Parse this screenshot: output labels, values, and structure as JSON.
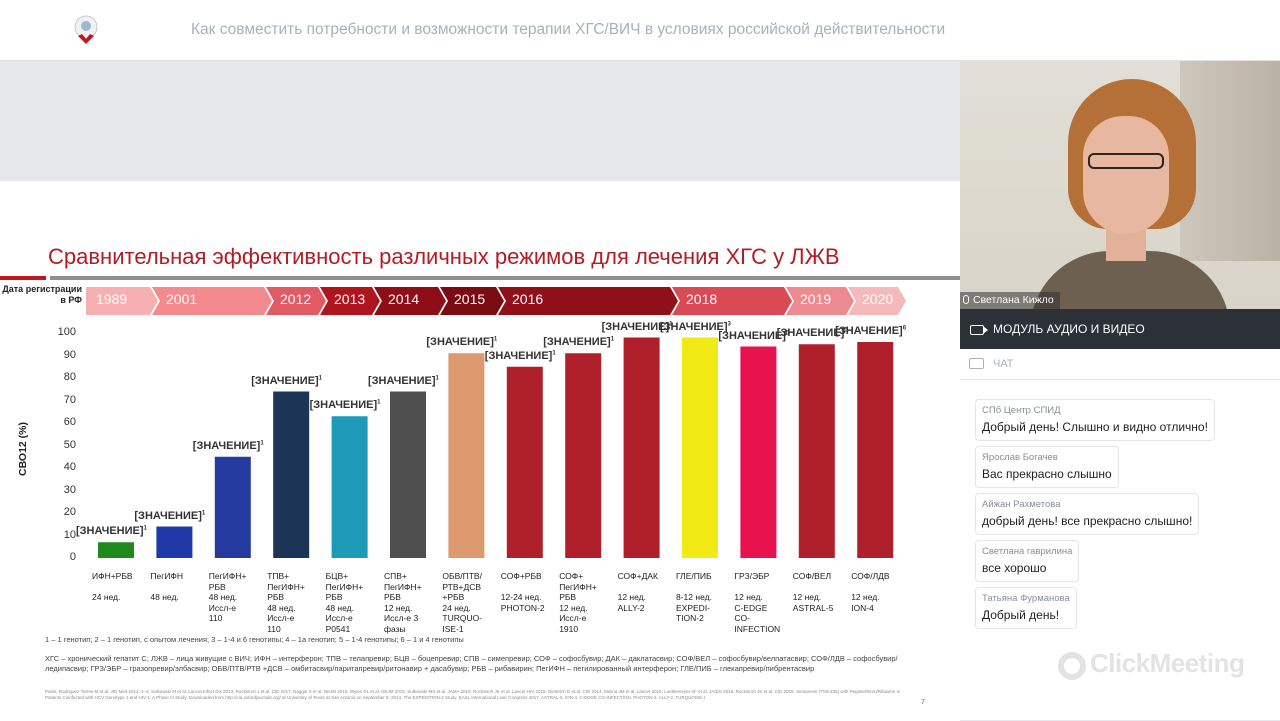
{
  "header": {
    "title": "Как совместить потребности и возможности терапии ХГС/ВИЧ в условиях российской действительности"
  },
  "slide": {
    "title": "Сравнительная эффективность различных режимов для лечения ХГС у ЛЖВ",
    "registration_label": "Дата регистрации в РФ",
    "timeline": {
      "years": [
        "1989",
        "2001",
        "2012",
        "2013",
        "2014",
        "2015",
        "2016",
        "2018",
        "2019",
        "2020"
      ],
      "colors": [
        "#f7b0b2",
        "#f28a8e",
        "#e05b63",
        "#b0151f",
        "#8e0d16",
        "#7a0b13",
        "#901019",
        "#d94a55",
        "#ec8a90",
        "#f5b8bb"
      ]
    },
    "footnote": "1 – 1 генотип; 2 – 1 генотип, с опытом лечения; 3 – 1-4 и 6 генотипы; 4 – 1а генотип; 5 – 1-4 генотипы; 6 – 1 и 4 генотипы",
    "abbreviations": "ХГС – хронический гепатит С; ЛЖВ – лица живущие с ВИЧ; ИФН – интерферон; ТПВ – телапревир; БЦВ – боцепревир; СПВ – симепревир; СОФ – софосбувир; ДАК – даклатасвир; СОФ/ВЕЛ – софосбувир/велпатасвир; СОФ/ЛДВ – софосбувир/ледипасвир; ГРЗ/ЭБР – гразопревир/элбасвир; ОБВ/ПТВ/РТВ +ДСВ – омбитасвир/паритапревир/ритонавир + дасабувир; РБВ – рибавирин; ПегИФН – пегилированный интерферон; ГЛЕ/ПИБ – глекапревир/пибрентасвир",
    "references": "Parisi, Rodriguez-Torres M et al. JID Med 2012; 1–4; Sulkowski M et al. Lancet Infect Dis 2013; Rockstroh J et al. CID 2017; Naggie S et al. NEJM 2015; Wyles DL et al. NEJM 2015; Sulkowski MS et al. JAMA 2015; Rockstroh JK et al. Lancet HIV 2015; Dieterich D et al. CID 2014; Molina JM et al. Lancet 2015; Luetkemeyer AF et al. JAIDS 2016; Rockstroh JK et al. CID 2018. Simeprevir (TMC435) with Peginterferon/Ribavirin in Patients Coinfected with HCV Genotype 1 and HIV-1: A Phase III Study. Downloaded from http://cid.oxfordjournals.org/ at University of Texas at San Antonio on September 8, 2014. The EXPEDITION-2 Study. EASL International Liver Congress 2017. ASTRAL-5. ION-4. C-EDGE CO-INFECTION. PHOTON-2. ALLY-2. TURQUOISE-I.",
    "page_number": "7"
  },
  "chart_data": {
    "type": "bar",
    "ylabel": "СВО12 (%)",
    "ylim": [
      0,
      100
    ],
    "yticks": [
      0,
      10,
      20,
      30,
      40,
      50,
      60,
      70,
      80,
      90,
      100
    ],
    "value_label": "[ЗНАЧЕНИЕ]",
    "bars": [
      {
        "value": 7,
        "sup": "1",
        "color": "#1e8a1e",
        "label": [
          "ИФН+РБВ",
          "",
          "24 нед."
        ]
      },
      {
        "value": 14,
        "sup": "1",
        "color": "#1f3aa8",
        "label": [
          "ПегИФН",
          "",
          "48 нед."
        ]
      },
      {
        "value": 45,
        "sup": "1",
        "color": "#243a9e",
        "label": [
          "ПегИФН+",
          "РБВ",
          "48 нед.",
          "Иссл-е",
          "110"
        ]
      },
      {
        "value": 74,
        "sup": "1",
        "color": "#1c3557",
        "label": [
          "ТПВ+",
          "ПегИФН+",
          "РБВ",
          "48 нед.",
          "Иссл-е",
          "110"
        ]
      },
      {
        "value": 63,
        "sup": "1",
        "color": "#1c9ab8",
        "label": [
          "БЦВ+",
          "ПегИФН+",
          "РБВ",
          "48 нед.",
          "Иссл-е",
          "P0541"
        ]
      },
      {
        "value": 74,
        "sup": "1",
        "color": "#4f4f4f",
        "label": [
          "СПВ+",
          "ПегИФН+",
          "РБВ",
          "12 нед.",
          "Иссл-е 3",
          "фазы"
        ]
      },
      {
        "value": 91,
        "sup": "1",
        "color": "#dd9a6e",
        "label": [
          "ОБВ/ПТВ/",
          "РТВ+ДСВ",
          "+РБВ",
          "24 нед.",
          "TURQUO-",
          "ISE-1"
        ]
      },
      {
        "value": 85,
        "sup": "1",
        "color": "#b0202a",
        "label": [
          "СОФ+РБВ",
          "",
          "12-24 нед.",
          "PHOTON-2"
        ]
      },
      {
        "value": 91,
        "sup": "1",
        "color": "#b0202a",
        "label": [
          "СОФ+",
          "ПегИФН+",
          "РБВ",
          "12 нед.",
          "Иссл-е",
          "1910"
        ]
      },
      {
        "value": 98,
        "sup": "1",
        "color": "#b0202a",
        "label": [
          "СОФ+ДАК",
          "",
          "12 нед.",
          "ALLY-2"
        ]
      },
      {
        "value": 98,
        "sup": "3",
        "color": "#f2ea14",
        "label": [
          "ГЛЕ/ПИБ",
          "",
          "8-12 нед.",
          "EXPEDI-",
          "TION-2"
        ]
      },
      {
        "value": 94,
        "sup": "5",
        "color": "#e8124f",
        "label": [
          "ГРЗ/ЭБР",
          "",
          "12 нед.",
          "C-EDGE",
          "CO-",
          "INFECTION"
        ]
      },
      {
        "value": 95,
        "sup": "5",
        "color": "#b0202a",
        "label": [
          "СОФ/ВЕЛ",
          "",
          "12 нед.",
          "ASTRAL-5"
        ]
      },
      {
        "value": 96,
        "sup": "6",
        "color": "#b0202a",
        "label": [
          "СОФ/ЛДВ",
          "",
          "12 нед.",
          "ION-4"
        ]
      }
    ]
  },
  "video": {
    "participant_name": "Светлана Кижло"
  },
  "module_bar": {
    "label": "МОДУЛЬ АУДИО И ВИДЕО"
  },
  "chat": {
    "label": "ЧАТ",
    "messages": [
      {
        "author": "СПб Центр СПИД",
        "text": "Добрый день! Слышно и видно отлично!"
      },
      {
        "author": "Ярослав Богачев",
        "text": "Вас прекрасно слышно"
      },
      {
        "author": "Айжан Рахметова",
        "text": "добрый день! все прекрасно слышно!"
      },
      {
        "author": "Светлана гаврилина",
        "text": "все хорошо"
      },
      {
        "author": "Татьяна Фурманова",
        "text": "Добрый день!"
      }
    ]
  },
  "branding": {
    "watermark": "ClickMeeting"
  }
}
